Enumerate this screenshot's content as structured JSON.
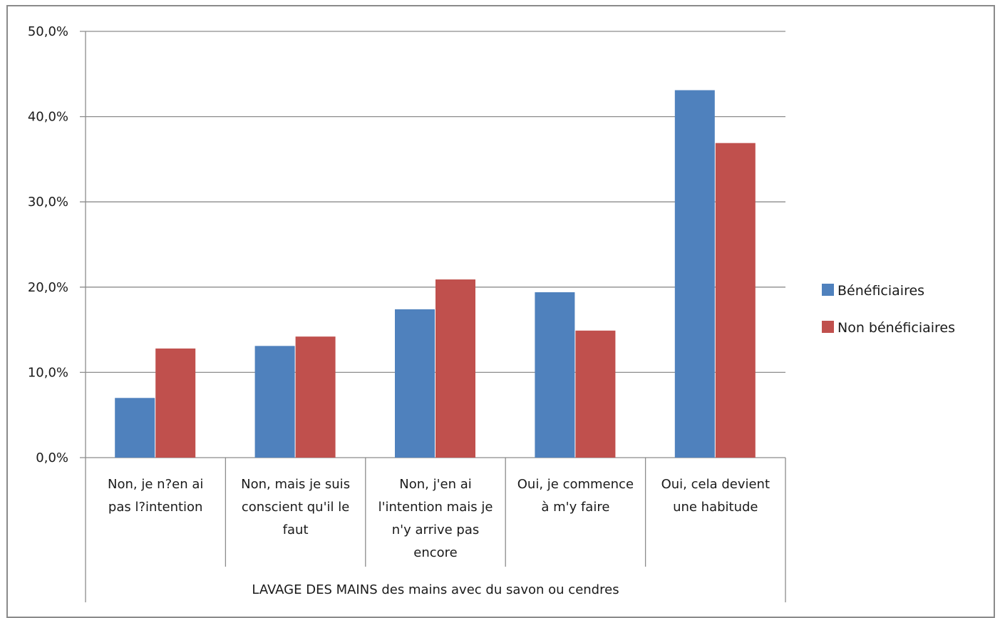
{
  "chart_data": {
    "type": "bar",
    "title": "",
    "xlabel": "LAVAGE DES MAINS  des  mains avec du savon ou cendres",
    "ylabel": "",
    "ylim": [
      0,
      50
    ],
    "yticks": [
      "0,0%",
      "10,0%",
      "20,0%",
      "30,0%",
      "40,0%",
      "50,0%"
    ],
    "grid": true,
    "legend_position": "right",
    "categories": [
      [
        "Non, je n?en ai",
        "pas l?intention"
      ],
      [
        "Non, mais je suis",
        "conscient qu'il le",
        "faut"
      ],
      [
        "Non, j'en ai",
        "l'intention mais je",
        "n'y arrive pas",
        "encore"
      ],
      [
        "Oui, je commence",
        "à m'y faire"
      ],
      [
        "Oui, cela devient",
        "une habitude"
      ]
    ],
    "series": [
      {
        "name": "Bénéficiaires",
        "color": "#4f81bd",
        "values": [
          7.0,
          13.1,
          17.4,
          19.4,
          43.1
        ]
      },
      {
        "name": "Non bénéficiaires",
        "color": "#c0504d",
        "values": [
          12.8,
          14.2,
          20.9,
          14.9,
          36.9
        ]
      }
    ]
  }
}
